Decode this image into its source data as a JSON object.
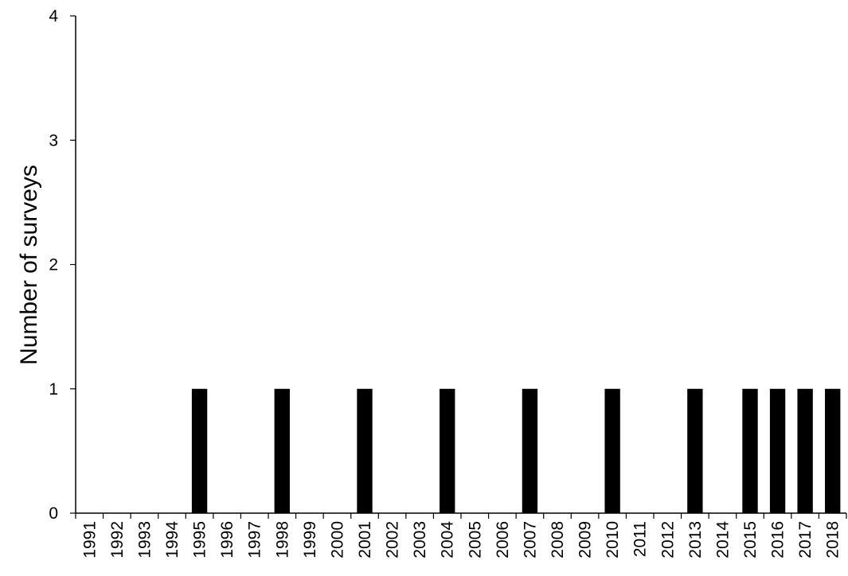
{
  "chart_data": {
    "type": "bar",
    "title": "",
    "xlabel": "",
    "ylabel": "Number of surveys",
    "ylim": [
      0,
      4
    ],
    "yticks": [
      "0",
      "1",
      "2",
      "3",
      "4"
    ],
    "categories": [
      "1991",
      "1992",
      "1993",
      "1994",
      "1995",
      "1996",
      "1997",
      "1998",
      "1999",
      "2000",
      "2001",
      "2002",
      "2003",
      "2004",
      "2005",
      "2006",
      "2007",
      "2008",
      "2009",
      "2010",
      "2011",
      "2012",
      "2013",
      "2014",
      "2015",
      "2016",
      "2017",
      "2018"
    ],
    "values": [
      0,
      0,
      0,
      0,
      1,
      0,
      0,
      1,
      0,
      0,
      1,
      0,
      0,
      1,
      0,
      0,
      1,
      0,
      0,
      1,
      0,
      0,
      1,
      0,
      1,
      1,
      1,
      1
    ],
    "bar_color": "#000000",
    "grid": false,
    "legend": "none"
  }
}
